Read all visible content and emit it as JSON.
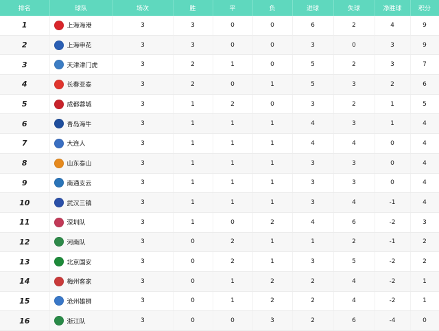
{
  "headers": [
    "排名",
    "球队",
    "场次",
    "胜",
    "平",
    "负",
    "进球",
    "失球",
    "净胜球",
    "积分"
  ],
  "rows": [
    {
      "rank": "1",
      "team": "上海海港",
      "logo_color": "#d9262b",
      "played": "3",
      "won": "3",
      "drawn": "0",
      "lost": "0",
      "gf": "6",
      "ga": "2",
      "gd": "4",
      "pts": "9"
    },
    {
      "rank": "2",
      "team": "上海申花",
      "logo_color": "#2a5fb4",
      "played": "3",
      "won": "3",
      "drawn": "0",
      "lost": "0",
      "gf": "3",
      "ga": "0",
      "gd": "3",
      "pts": "9"
    },
    {
      "rank": "3",
      "team": "天津津门虎",
      "logo_color": "#3c7dc4",
      "played": "3",
      "won": "2",
      "drawn": "1",
      "lost": "0",
      "gf": "5",
      "ga": "2",
      "gd": "3",
      "pts": "7"
    },
    {
      "rank": "4",
      "team": "长春亚泰",
      "logo_color": "#e0352e",
      "played": "3",
      "won": "2",
      "drawn": "0",
      "lost": "1",
      "gf": "5",
      "ga": "3",
      "gd": "2",
      "pts": "6"
    },
    {
      "rank": "5",
      "team": "成都蓉城",
      "logo_color": "#c8232b",
      "played": "3",
      "won": "1",
      "drawn": "2",
      "lost": "0",
      "gf": "3",
      "ga": "2",
      "gd": "1",
      "pts": "5"
    },
    {
      "rank": "6",
      "team": "青岛海牛",
      "logo_color": "#1f4e9c",
      "played": "3",
      "won": "1",
      "drawn": "1",
      "lost": "1",
      "gf": "4",
      "ga": "3",
      "gd": "1",
      "pts": "4"
    },
    {
      "rank": "7",
      "team": "大连人",
      "logo_color": "#3a6fc2",
      "played": "3",
      "won": "1",
      "drawn": "1",
      "lost": "1",
      "gf": "4",
      "ga": "4",
      "gd": "0",
      "pts": "4"
    },
    {
      "rank": "8",
      "team": "山东泰山",
      "logo_color": "#e68a1e",
      "played": "3",
      "won": "1",
      "drawn": "1",
      "lost": "1",
      "gf": "3",
      "ga": "3",
      "gd": "0",
      "pts": "4"
    },
    {
      "rank": "9",
      "team": "南通支云",
      "logo_color": "#2a74b8",
      "played": "3",
      "won": "1",
      "drawn": "1",
      "lost": "1",
      "gf": "3",
      "ga": "3",
      "gd": "0",
      "pts": "4"
    },
    {
      "rank": "10",
      "team": "武汉三镇",
      "logo_color": "#2b50a8",
      "played": "3",
      "won": "1",
      "drawn": "1",
      "lost": "1",
      "gf": "3",
      "ga": "4",
      "gd": "-1",
      "pts": "4"
    },
    {
      "rank": "11",
      "team": "深圳队",
      "logo_color": "#c23a58",
      "played": "3",
      "won": "1",
      "drawn": "0",
      "lost": "2",
      "gf": "4",
      "ga": "6",
      "gd": "-2",
      "pts": "3"
    },
    {
      "rank": "12",
      "team": "河南队",
      "logo_color": "#2f8a4a",
      "played": "3",
      "won": "0",
      "drawn": "2",
      "lost": "1",
      "gf": "1",
      "ga": "2",
      "gd": "-1",
      "pts": "2"
    },
    {
      "rank": "13",
      "team": "北京国安",
      "logo_color": "#1e8a3a",
      "played": "3",
      "won": "0",
      "drawn": "2",
      "lost": "1",
      "gf": "3",
      "ga": "5",
      "gd": "-2",
      "pts": "2"
    },
    {
      "rank": "14",
      "team": "梅州客家",
      "logo_color": "#c93a3a",
      "played": "3",
      "won": "0",
      "drawn": "1",
      "lost": "2",
      "gf": "2",
      "ga": "4",
      "gd": "-2",
      "pts": "1"
    },
    {
      "rank": "15",
      "team": "沧州雄狮",
      "logo_color": "#3a78c8",
      "played": "3",
      "won": "0",
      "drawn": "1",
      "lost": "2",
      "gf": "2",
      "ga": "4",
      "gd": "-2",
      "pts": "1"
    },
    {
      "rank": "16",
      "team": "浙江队",
      "logo_color": "#2a8a48",
      "played": "3",
      "won": "0",
      "drawn": "0",
      "lost": "3",
      "gf": "2",
      "ga": "6",
      "gd": "-4",
      "pts": "0"
    }
  ],
  "colors": {
    "header_bg": "#5fd8be",
    "stripe": "#f7f7f7"
  }
}
